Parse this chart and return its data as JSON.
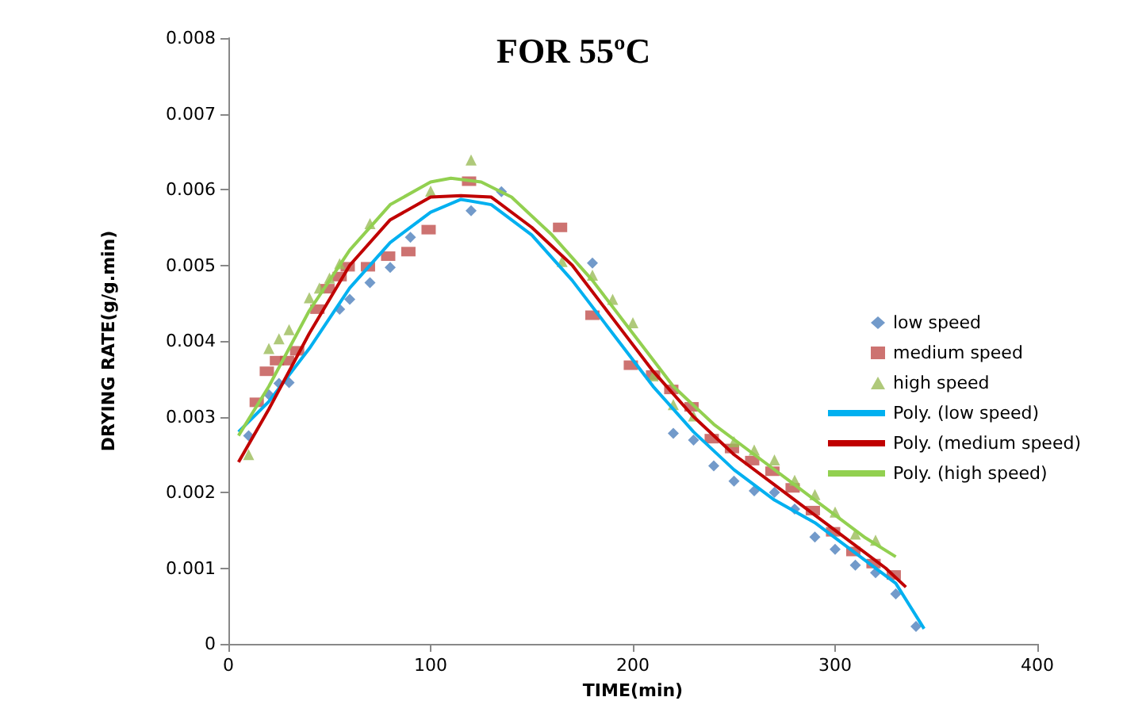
{
  "chart_data": {
    "type": "scatter",
    "title": "FOR 55ºC",
    "xlabel": "TIME(min)",
    "ylabel": "DRYING RATE(g/g.min)",
    "xlim": [
      0,
      400
    ],
    "xticks": [
      0,
      100,
      200,
      300,
      400
    ],
    "ylim": [
      0,
      0.008
    ],
    "yticks": [
      0,
      0.001,
      0.002,
      0.003,
      0.004,
      0.005,
      0.006,
      0.007,
      0.008
    ],
    "grid": false,
    "legend": "right",
    "series": [
      {
        "name": "low speed",
        "type": "scatter",
        "marker": "diamond",
        "color": "#4f81bd",
        "x": [
          10,
          20,
          25,
          30,
          55,
          60,
          70,
          80,
          90,
          120,
          135,
          180,
          220,
          230,
          240,
          250,
          260,
          270,
          280,
          290,
          300,
          310,
          320,
          330,
          340
        ],
        "values": [
          0.00275,
          0.00329,
          0.00344,
          0.00345,
          0.00442,
          0.00455,
          0.00477,
          0.00497,
          0.00537,
          0.00572,
          0.00597,
          0.00503,
          0.00278,
          0.00269,
          0.00235,
          0.00215,
          0.00202,
          0.002,
          0.00178,
          0.00141,
          0.00125,
          0.00104,
          0.00094,
          0.00066,
          0.00023
        ]
      },
      {
        "name": "medium speed",
        "type": "scatter",
        "marker": "square",
        "color": "#c0504d",
        "x": [
          14,
          19,
          24,
          29,
          34,
          44,
          49,
          55,
          59,
          69,
          79,
          89,
          99,
          119,
          164,
          180,
          199,
          210,
          219,
          229,
          239,
          249,
          259,
          269,
          279,
          289,
          299,
          309,
          319,
          329
        ],
        "values": [
          0.00319,
          0.0036,
          0.00374,
          0.00374,
          0.00387,
          0.00442,
          0.00469,
          0.00485,
          0.00498,
          0.00498,
          0.00512,
          0.00518,
          0.00547,
          0.00611,
          0.0055,
          0.00434,
          0.00368,
          0.00355,
          0.00336,
          0.00313,
          0.00271,
          0.00258,
          0.00242,
          0.00228,
          0.00206,
          0.00176,
          0.00148,
          0.00122,
          0.00106,
          0.00091
        ]
      },
      {
        "name": "high speed",
        "type": "scatter",
        "marker": "triangle",
        "color": "#9bbb59",
        "x": [
          10,
          20,
          25,
          30,
          40,
          45,
          50,
          55,
          70,
          100,
          120,
          165,
          180,
          190,
          200,
          210,
          220,
          230,
          250,
          260,
          270,
          280,
          290,
          300,
          310,
          320
        ],
        "values": [
          0.0025,
          0.0039,
          0.00403,
          0.00415,
          0.00457,
          0.0047,
          0.00483,
          0.00502,
          0.00555,
          0.00598,
          0.00639,
          0.00505,
          0.00487,
          0.00455,
          0.00424,
          0.00354,
          0.00316,
          0.00301,
          0.00267,
          0.00256,
          0.00243,
          0.00216,
          0.00197,
          0.00174,
          0.00145,
          0.00137
        ]
      },
      {
        "name": "Poly. (low speed)",
        "type": "line",
        "marker": "none",
        "color": "#00b0f0",
        "x": [
          5,
          20,
          40,
          60,
          80,
          100,
          115,
          130,
          150,
          170,
          190,
          210,
          230,
          250,
          270,
          290,
          310,
          330,
          344
        ],
        "values": [
          0.0028,
          0.0032,
          0.0039,
          0.0047,
          0.0053,
          0.0057,
          0.00587,
          0.0058,
          0.0054,
          0.0048,
          0.0041,
          0.0034,
          0.0028,
          0.0023,
          0.0019,
          0.0016,
          0.0012,
          0.0008,
          0.0002
        ]
      },
      {
        "name": "Poly. (medium speed)",
        "type": "line",
        "marker": "none",
        "color": "#c00000",
        "x": [
          5,
          20,
          40,
          60,
          80,
          100,
          115,
          130,
          150,
          170,
          190,
          210,
          230,
          250,
          270,
          290,
          310,
          325,
          335
        ],
        "values": [
          0.0024,
          0.0031,
          0.0041,
          0.005,
          0.0056,
          0.0059,
          0.00592,
          0.0059,
          0.0055,
          0.005,
          0.0043,
          0.0036,
          0.003,
          0.0025,
          0.0021,
          0.0017,
          0.0013,
          0.001,
          0.00075
        ]
      },
      {
        "name": "Poly. (high speed)",
        "type": "line",
        "marker": "none",
        "color": "#92d050",
        "x": [
          5,
          20,
          40,
          60,
          80,
          100,
          110,
          125,
          140,
          160,
          180,
          200,
          220,
          240,
          260,
          280,
          300,
          315,
          330
        ],
        "values": [
          0.00275,
          0.0034,
          0.0044,
          0.0052,
          0.0058,
          0.0061,
          0.00615,
          0.0061,
          0.0059,
          0.0054,
          0.0048,
          0.0041,
          0.0034,
          0.0029,
          0.0025,
          0.0021,
          0.0017,
          0.0014,
          0.00115
        ]
      }
    ]
  }
}
